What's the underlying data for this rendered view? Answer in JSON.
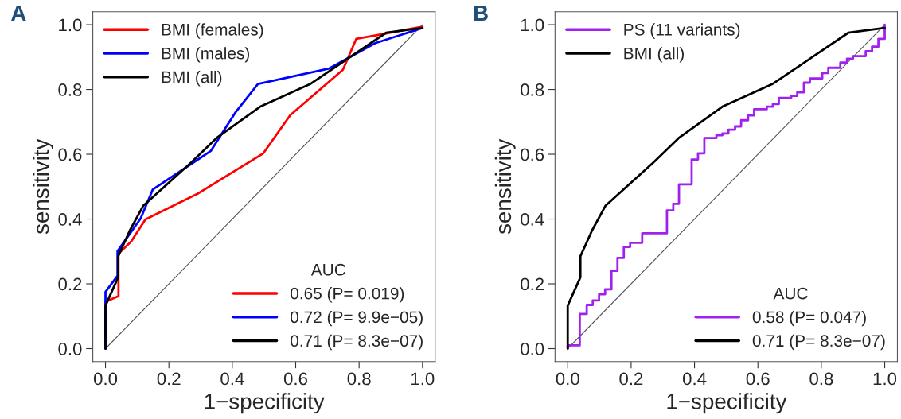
{
  "chart_data": [
    {
      "type": "line",
      "title": "A",
      "xlabel": "1−specificity",
      "ylabel": "sensitivity",
      "legend": "top left",
      "legend_title": "AUC",
      "grid": false,
      "xlim": [
        -0.04,
        1.04
      ],
      "ylim": [
        -0.04,
        1.04
      ],
      "xticks": [
        {
          "value": 0,
          "label": "0.0"
        },
        {
          "value": 0.2,
          "label": "0.2"
        },
        {
          "value": 0.4,
          "label": "0.4"
        },
        {
          "value": 0.6,
          "label": "0.6"
        },
        {
          "value": 0.8,
          "label": "0.8"
        },
        {
          "value": 1,
          "label": "1.0"
        }
      ],
      "yticks": [
        {
          "value": 0,
          "label": "0.0"
        },
        {
          "value": 0.2,
          "label": "0.2"
        },
        {
          "value": 0.4,
          "label": "0.4"
        },
        {
          "value": 0.6,
          "label": "0.6"
        },
        {
          "value": 0.8,
          "label": "0.8"
        },
        {
          "value": 1,
          "label": "1.0"
        }
      ],
      "annotations": [
        "0.65 (P= 0.019)",
        "0.72 (P= 9.9e−05)",
        "0.71 (P= 8.3e−07)"
      ],
      "series": [
        {
          "color": "#555555",
          "x": [
            0,
            1
          ],
          "values": [
            0,
            1
          ]
        },
        {
          "name": "BMI (females)",
          "color": "#ff0000",
          "x": [
            0,
            0,
            0.041,
            0.041,
            0.081,
            0.126,
            0.294,
            0.498,
            0.583,
            0.749,
            0.791,
            0.885,
            1.0
          ],
          "values": [
            0,
            0.145,
            0.162,
            0.293,
            0.331,
            0.399,
            0.48,
            0.603,
            0.721,
            0.861,
            0.956,
            0.973,
            0.994
          ]
        },
        {
          "name": "BMI (males)",
          "color": "#0000ff",
          "x": [
            0,
            0,
            0.038,
            0.038,
            0.111,
            0.149,
            0.332,
            0.409,
            0.481,
            0.706,
            0.851,
            1.0
          ],
          "values": [
            0,
            0.175,
            0.225,
            0.301,
            0.402,
            0.491,
            0.61,
            0.728,
            0.817,
            0.865,
            0.943,
            0.99
          ]
        },
        {
          "name": "BMI (all)",
          "color": "#000000",
          "x": [
            0,
            0,
            0.04,
            0.04,
            0.077,
            0.119,
            0.272,
            0.35,
            0.49,
            0.648,
            0.885,
            1.0
          ],
          "values": [
            0,
            0.133,
            0.22,
            0.285,
            0.365,
            0.441,
            0.576,
            0.65,
            0.748,
            0.818,
            0.975,
            0.99
          ]
        }
      ]
    },
    {
      "type": "line",
      "title": "B",
      "xlabel": "1−specificity",
      "ylabel": "sensitivity",
      "legend": "top left",
      "legend_title": "AUC",
      "grid": false,
      "xlim": [
        -0.04,
        1.04
      ],
      "ylim": [
        -0.04,
        1.04
      ],
      "xticks": [
        {
          "value": 0,
          "label": "0.0"
        },
        {
          "value": 0.2,
          "label": "0.2"
        },
        {
          "value": 0.4,
          "label": "0.4"
        },
        {
          "value": 0.6,
          "label": "0.6"
        },
        {
          "value": 0.8,
          "label": "0.8"
        },
        {
          "value": 1,
          "label": "1.0"
        }
      ],
      "yticks": [
        {
          "value": 0,
          "label": "0.0"
        },
        {
          "value": 0.2,
          "label": "0.2"
        },
        {
          "value": 0.4,
          "label": "0.4"
        },
        {
          "value": 0.6,
          "label": "0.6"
        },
        {
          "value": 0.8,
          "label": "0.8"
        },
        {
          "value": 1,
          "label": "1.0"
        }
      ],
      "annotations": [
        "0.58 (P= 0.047)",
        "0.71 (P= 8.3e−07)"
      ],
      "series": [
        {
          "color": "#555555",
          "x": [
            0,
            1
          ],
          "values": [
            0,
            1
          ]
        },
        {
          "name": "PS (11 variants)",
          "type": "step",
          "color": "#a020f0",
          "x": [
            0,
            0,
            0.038,
            0.06,
            0.079,
            0.099,
            0.118,
            0.138,
            0.157,
            0.177,
            0.197,
            0.235,
            0.313,
            0.313,
            0.333,
            0.351,
            0.391,
            0.411,
            0.431,
            0.469,
            0.488,
            0.507,
            0.528,
            0.547,
            0.569,
            0.588,
            0.628,
            0.647,
            0.666,
            0.705,
            0.724,
            0.745,
            0.764,
            0.803,
            0.822,
            0.86,
            0.881,
            0.9,
            0.94,
            0.96,
            0.98,
            1.0
          ],
          "values": [
            0,
            0.01,
            0.107,
            0.135,
            0.149,
            0.168,
            0.183,
            0.24,
            0.28,
            0.314,
            0.327,
            0.356,
            0.365,
            0.427,
            0.447,
            0.507,
            0.584,
            0.603,
            0.65,
            0.659,
            0.664,
            0.676,
            0.686,
            0.705,
            0.72,
            0.739,
            0.747,
            0.755,
            0.774,
            0.78,
            0.791,
            0.821,
            0.834,
            0.851,
            0.867,
            0.883,
            0.895,
            0.903,
            0.918,
            0.932,
            0.956,
            1.0
          ]
        },
        {
          "name": "BMI (all)",
          "color": "#000000",
          "x": [
            0,
            0,
            0.04,
            0.04,
            0.077,
            0.119,
            0.272,
            0.35,
            0.49,
            0.648,
            0.885,
            1.0
          ],
          "values": [
            0,
            0.133,
            0.22,
            0.285,
            0.365,
            0.441,
            0.576,
            0.65,
            0.748,
            0.818,
            0.975,
            0.99
          ]
        }
      ]
    }
  ]
}
